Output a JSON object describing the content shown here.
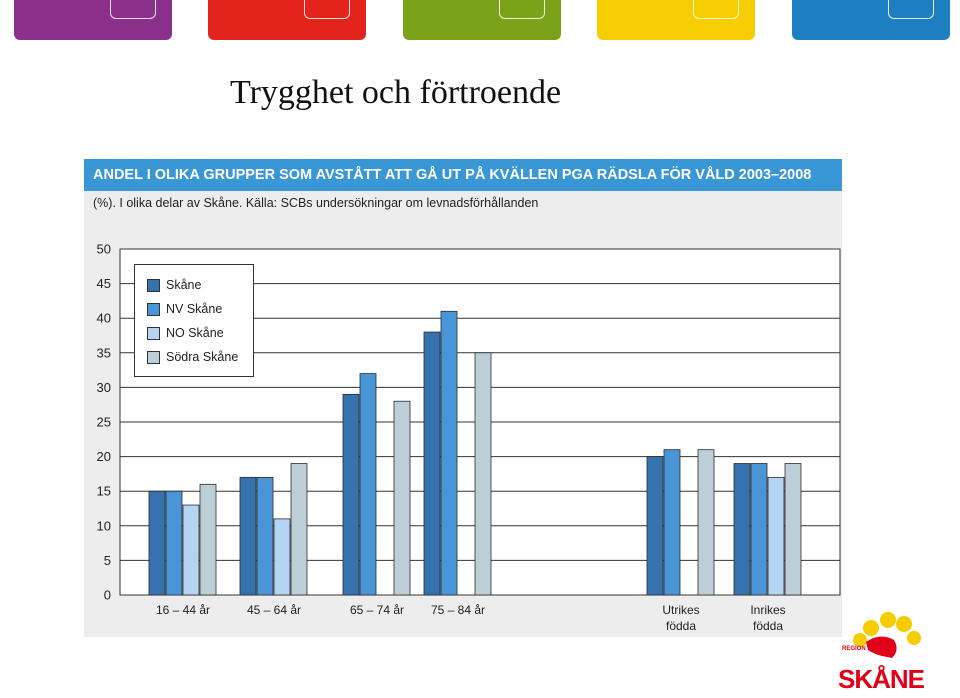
{
  "header_tabs": [
    {
      "name": "purple",
      "color": "#8a2f8a"
    },
    {
      "name": "red",
      "color": "#e2241c"
    },
    {
      "name": "green",
      "color": "#7ca21a"
    },
    {
      "name": "yellow",
      "color": "#f6cd00"
    },
    {
      "name": "blue",
      "color": "#1e7fc0"
    }
  ],
  "slide_title": "Trygghet och förtroende",
  "figure": {
    "banner": "ANDEL I OLIKA GRUPPER SOM AVSTÅTT ATT GÅ UT PÅ KVÄLLEN PGA RÄDSLA FÖR VÅLD 2003–2008",
    "subtitle": "(%). I olika delar av Skåne. Källa: SCBs undersökningar om levnadsförhållanden",
    "banner_color": "#3a97d6"
  },
  "chart_data": {
    "type": "bar",
    "title": "ANDEL I OLIKA GRUPPER SOM AVSTÅTT ATT GÅ UT PÅ KVÄLLEN PGA RÄDSLA FÖR VÅLD 2003–2008",
    "subtitle": "(%). I olika delar av Skåne. Källa: SCBs undersökningar om levnadsförhållanden",
    "ylim": [
      0,
      50
    ],
    "yticks": [
      "0",
      "5",
      "10",
      "15",
      "20",
      "25",
      "30",
      "35",
      "40",
      "45",
      "50"
    ],
    "grid": true,
    "legend_position": "top-left",
    "categories": [
      {
        "label": [
          "16 – 44 år"
        ],
        "group": 0
      },
      {
        "label": [
          "45 – 64 år"
        ],
        "group": 0
      },
      {
        "label": [
          "65 – 74 år"
        ],
        "group": 0
      },
      {
        "label": [
          "75 – 84 år"
        ],
        "group": 0
      },
      {
        "label": [
          "Utrikes",
          "födda"
        ],
        "group": 1
      },
      {
        "label": [
          "Inrikes",
          "födda"
        ],
        "group": 1
      }
    ],
    "series": [
      {
        "name": "Skåne",
        "color": "#3572ae",
        "values": [
          15,
          17,
          29,
          38,
          20,
          19
        ]
      },
      {
        "name": "NV Skåne",
        "color": "#4a94d8",
        "values": [
          15,
          17,
          32,
          41,
          21,
          19
        ]
      },
      {
        "name": "NO Skåne",
        "color": "#b4d4f2",
        "values": [
          13,
          11,
          null,
          null,
          null,
          17
        ]
      },
      {
        "name": "Södra Skåne",
        "color": "#bccfd6",
        "values": [
          16,
          19,
          28,
          35,
          21,
          19
        ]
      }
    ]
  },
  "logo": {
    "small": "REGION",
    "text": "SKÅNE",
    "sun_color": "#f6cd00",
    "brand_color": "#e10019"
  }
}
